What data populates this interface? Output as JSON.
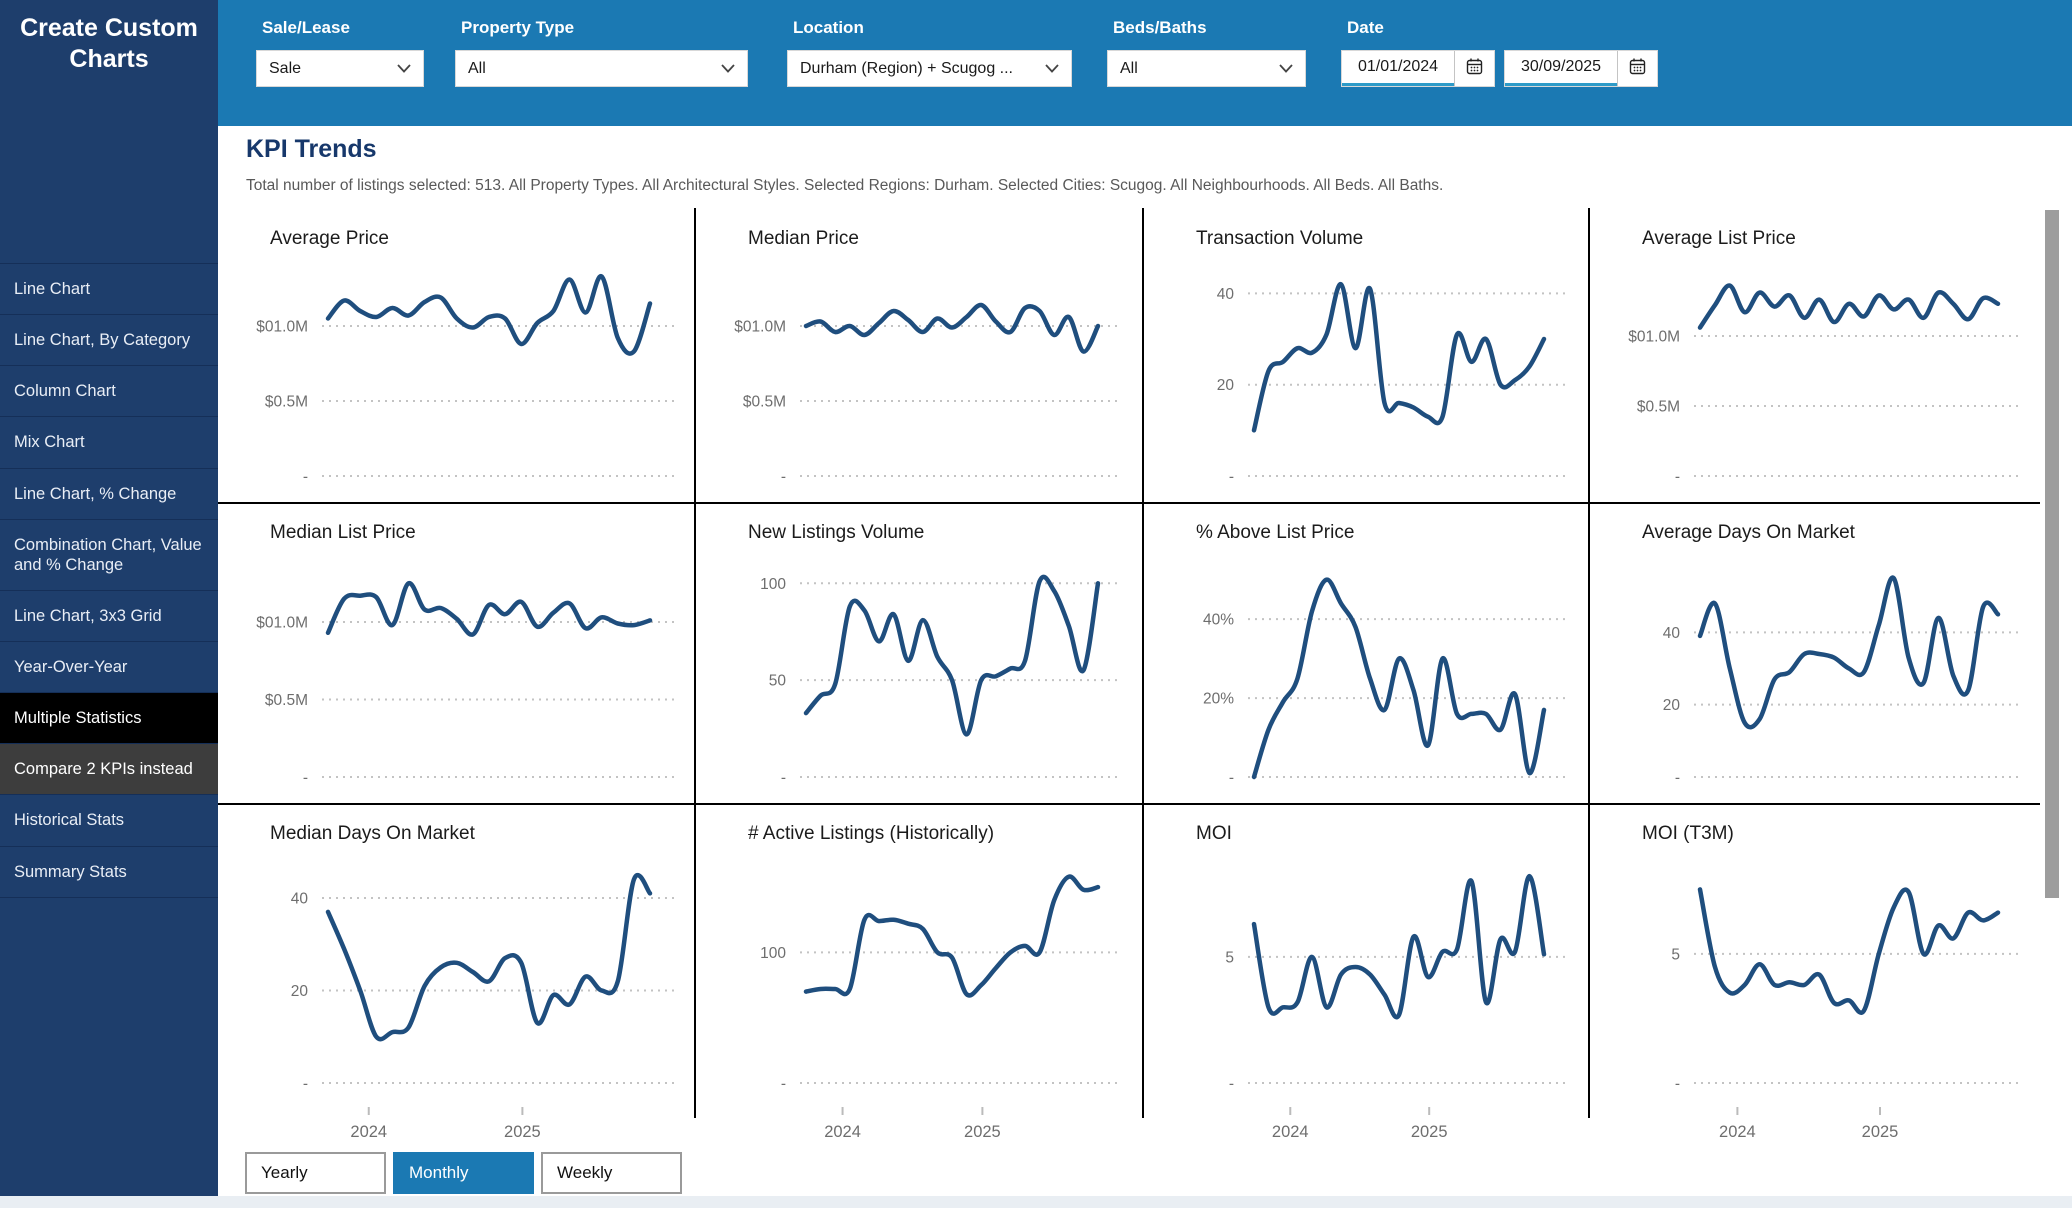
{
  "sidebar": {
    "title": "Create Custom Charts",
    "items": [
      {
        "label": "Line Chart",
        "slug": "line-chart",
        "state": "normal"
      },
      {
        "label": "Line Chart, By Category",
        "slug": "line-chart-by-category",
        "state": "normal"
      },
      {
        "label": "Column Chart",
        "slug": "column-chart",
        "state": "normal"
      },
      {
        "label": "Mix Chart",
        "slug": "mix-chart",
        "state": "normal"
      },
      {
        "label": "Line Chart, % Change",
        "slug": "line-chart-pct-change",
        "state": "normal"
      },
      {
        "label": "Combination Chart, Value and % Change",
        "slug": "combination-chart-value-and-pct-change",
        "state": "normal"
      },
      {
        "label": "Line Chart, 3x3 Grid",
        "slug": "line-chart-3x3-grid",
        "state": "normal"
      },
      {
        "label": "Year-Over-Year",
        "slug": "year-over-year",
        "state": "normal"
      },
      {
        "label": "Multiple Statistics",
        "slug": "multiple-statistics",
        "state": "selected"
      },
      {
        "label": "Compare 2 KPIs instead",
        "slug": "compare-2-kpis-instead",
        "state": "secondary"
      },
      {
        "label": "Historical Stats",
        "slug": "historical-stats",
        "state": "normal"
      },
      {
        "label": "Summary Stats",
        "slug": "summary-stats",
        "state": "normal"
      }
    ]
  },
  "filters": {
    "sale_lease": {
      "label": "Sale/Lease",
      "value": "Sale"
    },
    "property_type": {
      "label": "Property Type",
      "value": "All"
    },
    "location": {
      "label": "Location",
      "value": "Durham (Region) + Scugog ..."
    },
    "beds_baths": {
      "label": "Beds/Baths",
      "value": "All"
    },
    "date": {
      "label": "Date",
      "from": "01/01/2024",
      "to": "30/09/2025"
    }
  },
  "main": {
    "title": "KPI Trends",
    "subtitle": "Total number of listings selected: 513. All Property Types. All Architectural Styles. Selected Regions: Durham. Selected Cities: Scugog. All Neighbourhoods. All Beds. All Baths."
  },
  "period_buttons": [
    {
      "label": "Yearly",
      "selected": false
    },
    {
      "label": "Monthly",
      "selected": true
    },
    {
      "label": "Weekly",
      "selected": false
    }
  ],
  "colors": {
    "sidebar_navy": "#1e3e6c",
    "topbar_blue": "#1b79b3",
    "selected_black": "#000000",
    "secondary_gray": "#3d3d3d",
    "line_blue": "#1f4e7e",
    "heading_navy": "#17386b",
    "date_underline": "#2e9bc8"
  },
  "chart_data": [
    {
      "type": "line",
      "title": "Average Price",
      "slug": "average-price",
      "x_start": "2024-01",
      "x_end": "2025-09",
      "show_x_labels": false,
      "x_labels": [
        "2024",
        "2025"
      ],
      "ymax": 1.4,
      "y_ticks": [
        {
          "label": "$01.0M",
          "value": 1.0
        },
        {
          "label": "$0.5M",
          "value": 0.5
        },
        {
          "label": "-",
          "value": 0
        }
      ],
      "values": [
        1.05,
        1.17,
        1.1,
        1.06,
        1.12,
        1.07,
        1.16,
        1.19,
        1.05,
        0.99,
        1.06,
        1.05,
        0.88,
        1.02,
        1.1,
        1.31,
        1.09,
        1.33,
        0.92,
        0.83,
        1.15
      ]
    },
    {
      "type": "line",
      "title": "Median Price",
      "slug": "median-price",
      "x_start": "2024-01",
      "x_end": "2025-09",
      "show_x_labels": false,
      "x_labels": [
        "2024",
        "2025"
      ],
      "ymax": 1.4,
      "y_ticks": [
        {
          "label": "$01.0M",
          "value": 1.0
        },
        {
          "label": "$0.5M",
          "value": 0.5
        },
        {
          "label": "-",
          "value": 0
        }
      ],
      "values": [
        1.0,
        1.03,
        0.96,
        1.0,
        0.94,
        1.02,
        1.1,
        1.04,
        0.96,
        1.05,
        0.99,
        1.06,
        1.14,
        1.03,
        0.96,
        1.12,
        1.1,
        0.94,
        1.06,
        0.83,
        1.0
      ]
    },
    {
      "type": "line",
      "title": "Transaction Volume",
      "slug": "transaction-volume",
      "x_start": "2024-01",
      "x_end": "2025-09",
      "show_x_labels": false,
      "x_labels": [
        "2024",
        "2025"
      ],
      "ymax": 46,
      "y_ticks": [
        {
          "label": "40",
          "value": 40
        },
        {
          "label": "20",
          "value": 20
        },
        {
          "label": "-",
          "value": 0
        }
      ],
      "values": [
        10,
        23,
        25,
        28,
        27,
        31,
        42,
        28,
        41,
        16,
        16,
        15,
        13,
        13,
        31,
        25,
        30,
        20,
        21,
        24,
        30
      ]
    },
    {
      "type": "line",
      "title": "Average List Price",
      "slug": "average-list-price",
      "x_start": "2024-01",
      "x_end": "2025-09",
      "show_x_labels": false,
      "x_labels": [
        "2024",
        "2025"
      ],
      "ymax": 1.5,
      "y_ticks": [
        {
          "label": "$01.0M",
          "value": 1.0
        },
        {
          "label": "$0.5M",
          "value": 0.5
        },
        {
          "label": "-",
          "value": 0
        }
      ],
      "values": [
        1.06,
        1.22,
        1.36,
        1.17,
        1.31,
        1.21,
        1.29,
        1.13,
        1.26,
        1.1,
        1.23,
        1.14,
        1.29,
        1.19,
        1.26,
        1.13,
        1.31,
        1.23,
        1.12,
        1.27,
        1.23
      ]
    },
    {
      "type": "line",
      "title": "Median List Price",
      "slug": "median-list-price",
      "x_start": "2024-01",
      "x_end": "2025-09",
      "show_x_labels": false,
      "x_labels": [
        "2024",
        "2025"
      ],
      "ymax": 1.4,
      "y_ticks": [
        {
          "label": "$01.0M",
          "value": 1.0
        },
        {
          "label": "$0.5M",
          "value": 0.5
        },
        {
          "label": "-",
          "value": 0
        }
      ],
      "values": [
        0.93,
        1.15,
        1.17,
        1.16,
        0.98,
        1.25,
        1.08,
        1.09,
        1.02,
        0.92,
        1.11,
        1.05,
        1.13,
        0.97,
        1.06,
        1.12,
        0.96,
        1.03,
        0.99,
        0.98,
        1.01
      ]
    },
    {
      "type": "line",
      "title": "New Listings Volume",
      "slug": "new-listings-volume",
      "x_start": "2024-01",
      "x_end": "2025-09",
      "show_x_labels": false,
      "x_labels": [
        "2024",
        "2025"
      ],
      "ymax": 112,
      "y_ticks": [
        {
          "label": "100",
          "value": 100
        },
        {
          "label": "50",
          "value": 50
        },
        {
          "label": "-",
          "value": 0
        }
      ],
      "values": [
        33,
        42,
        48,
        88,
        86,
        70,
        84,
        60,
        81,
        62,
        50,
        22,
        50,
        52,
        56,
        60,
        101,
        96,
        78,
        55,
        100
      ]
    },
    {
      "type": "line",
      "title": "% Above List Price",
      "slug": "pct-above-list-price",
      "x_start": "2024-01",
      "x_end": "2025-09",
      "show_x_labels": false,
      "x_labels": [
        "2024",
        "2025"
      ],
      "ymax": 55,
      "y_ticks": [
        {
          "label": "40%",
          "value": 40
        },
        {
          "label": "20%",
          "value": 20
        },
        {
          "label": "-",
          "value": 0
        }
      ],
      "values": [
        0,
        12,
        19,
        25,
        42,
        50,
        44,
        38,
        25,
        17,
        30,
        22,
        8,
        30,
        16,
        16,
        16,
        12,
        21,
        1,
        17
      ]
    },
    {
      "type": "line",
      "title": "Average Days On Market",
      "slug": "average-days-on-market",
      "x_start": "2024-01",
      "x_end": "2025-09",
      "show_x_labels": false,
      "x_labels": [
        "2024",
        "2025"
      ],
      "ymax": 60,
      "y_ticks": [
        {
          "label": "40",
          "value": 40
        },
        {
          "label": "20",
          "value": 20
        },
        {
          "label": "-",
          "value": 0
        }
      ],
      "values": [
        39,
        48,
        30,
        15,
        16,
        27,
        29,
        34,
        34,
        33,
        30,
        29,
        42,
        55,
        33,
        26,
        44,
        28,
        24,
        47,
        45
      ]
    },
    {
      "type": "line",
      "title": "Median Days On Market",
      "slug": "median-days-on-market",
      "x_start": "2024-01",
      "x_end": "2025-09",
      "show_x_labels": true,
      "x_labels": [
        "2024",
        "2025"
      ],
      "ymax": 48,
      "y_ticks": [
        {
          "label": "40",
          "value": 40
        },
        {
          "label": "20",
          "value": 20
        },
        {
          "label": "-",
          "value": 0
        }
      ],
      "values": [
        37,
        29,
        20,
        10,
        11,
        12,
        21,
        25,
        26,
        24,
        22,
        27,
        26,
        13,
        19,
        17,
        23,
        20,
        22,
        44,
        41
      ]
    },
    {
      "type": "line",
      "title": "# Active Listings (Historically)",
      "slug": "active-listings-historically",
      "x_start": "2024-01",
      "x_end": "2025-09",
      "show_x_labels": true,
      "x_labels": [
        "2024",
        "2025"
      ],
      "ymax": 170,
      "y_ticks": [
        {
          "label": "100",
          "value": 100
        },
        {
          "label": "-",
          "value": 0
        }
      ],
      "values": [
        70,
        72,
        72,
        72,
        125,
        124,
        125,
        122,
        118,
        100,
        96,
        68,
        75,
        88,
        100,
        105,
        100,
        140,
        158,
        148,
        150
      ]
    },
    {
      "type": "line",
      "title": "MOI",
      "slug": "moi",
      "x_start": "2024-01",
      "x_end": "2025-09",
      "show_x_labels": true,
      "x_labels": [
        "2024",
        "2025"
      ],
      "ymax": 8.8,
      "y_ticks": [
        {
          "label": "5",
          "value": 5
        },
        {
          "label": "-",
          "value": 0
        }
      ],
      "values": [
        6.3,
        3.0,
        3.0,
        3.2,
        5.0,
        3.0,
        4.3,
        4.6,
        4.3,
        3.5,
        2.7,
        5.8,
        4.2,
        5.2,
        5.3,
        8.0,
        3.2,
        5.7,
        5.2,
        8.2,
        5.1
      ]
    },
    {
      "type": "line",
      "title": "MOI (T3M)",
      "slug": "moi-t3m",
      "x_start": "2024-01",
      "x_end": "2025-09",
      "show_x_labels": true,
      "x_labels": [
        "2024",
        "2025"
      ],
      "ymax": 8.6,
      "y_ticks": [
        {
          "label": "5",
          "value": 5
        },
        {
          "label": "-",
          "value": 0
        }
      ],
      "values": [
        7.5,
        4.5,
        3.5,
        3.8,
        4.6,
        3.8,
        3.9,
        3.8,
        4.2,
        3.1,
        3.2,
        2.8,
        5.0,
        6.8,
        7.4,
        5.0,
        6.1,
        5.6,
        6.6,
        6.3,
        6.6
      ]
    }
  ]
}
